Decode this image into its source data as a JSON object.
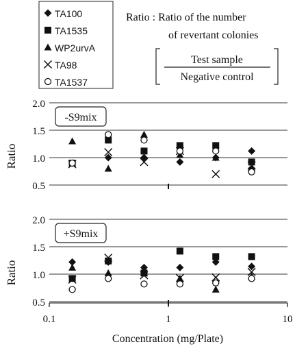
{
  "legend": {
    "entries": [
      {
        "name": "TA100",
        "marker": "diamond-filled"
      },
      {
        "name": "TA1535",
        "marker": "square-filled"
      },
      {
        "name": "WP2urvA",
        "marker": "triangle-filled"
      },
      {
        "name": "TA98",
        "marker": "cross"
      },
      {
        "name": "TA1537",
        "marker": "circle-open"
      }
    ]
  },
  "note": {
    "line1": "Ratio : Ratio of the number",
    "line2": "of revertant colonies",
    "numerator": "Test sample",
    "denominator": "Negative control"
  },
  "chart_data": [
    {
      "type": "scatter",
      "label": "-S9mix",
      "ylabel": "Ratio",
      "xscale": "log",
      "xlim": [
        0.1,
        10
      ],
      "ylim": [
        0.5,
        2.0
      ],
      "yticks": [
        "0.5",
        "1.0",
        "1.5",
        "2.0"
      ],
      "grid": "horizontal",
      "x": [
        0.156,
        0.313,
        0.625,
        1.25,
        2.5,
        5
      ],
      "series": [
        {
          "name": "TA100",
          "values": [
            0.9,
            1.0,
            1.0,
            0.92,
            1.0,
            1.12
          ]
        },
        {
          "name": "TA1535",
          "values": [
            0.9,
            1.32,
            1.12,
            1.22,
            1.22,
            0.92
          ]
        },
        {
          "name": "WP2urvA",
          "values": [
            1.3,
            0.8,
            1.42,
            1.05,
            1.0,
            0.82
          ]
        },
        {
          "name": "TA98",
          "values": [
            0.88,
            1.1,
            0.92,
            1.12,
            0.7,
            0.86
          ]
        },
        {
          "name": "TA1537",
          "values": [
            0.9,
            1.42,
            1.32,
            1.12,
            1.12,
            0.74
          ]
        }
      ]
    },
    {
      "type": "scatter",
      "label": "+S9mix",
      "ylabel": "Ratio",
      "xlabel": "Concentration (mg/Plate)",
      "xscale": "log",
      "xlim": [
        0.1,
        10
      ],
      "ylim": [
        0.5,
        2.0
      ],
      "yticks": [
        "0.5",
        "1.0",
        "1.5",
        "2.0"
      ],
      "xticks": [
        "0.1",
        "1",
        "10"
      ],
      "grid": "horizontal",
      "x": [
        0.156,
        0.313,
        0.625,
        1.25,
        2.5,
        5
      ],
      "series": [
        {
          "name": "TA100",
          "values": [
            1.22,
            1.22,
            1.12,
            1.12,
            1.22,
            1.14
          ]
        },
        {
          "name": "TA1535",
          "values": [
            0.92,
            1.24,
            1.02,
            1.42,
            1.32,
            1.32
          ]
        },
        {
          "name": "WP2urvA",
          "values": [
            1.12,
            1.02,
            1.02,
            0.92,
            0.72,
            0.96
          ]
        },
        {
          "name": "TA98",
          "values": [
            0.9,
            1.3,
            0.98,
            0.93,
            0.94,
            1.04
          ]
        },
        {
          "name": "TA1537",
          "values": [
            0.72,
            0.92,
            0.82,
            0.82,
            0.84,
            0.92
          ]
        }
      ]
    }
  ]
}
